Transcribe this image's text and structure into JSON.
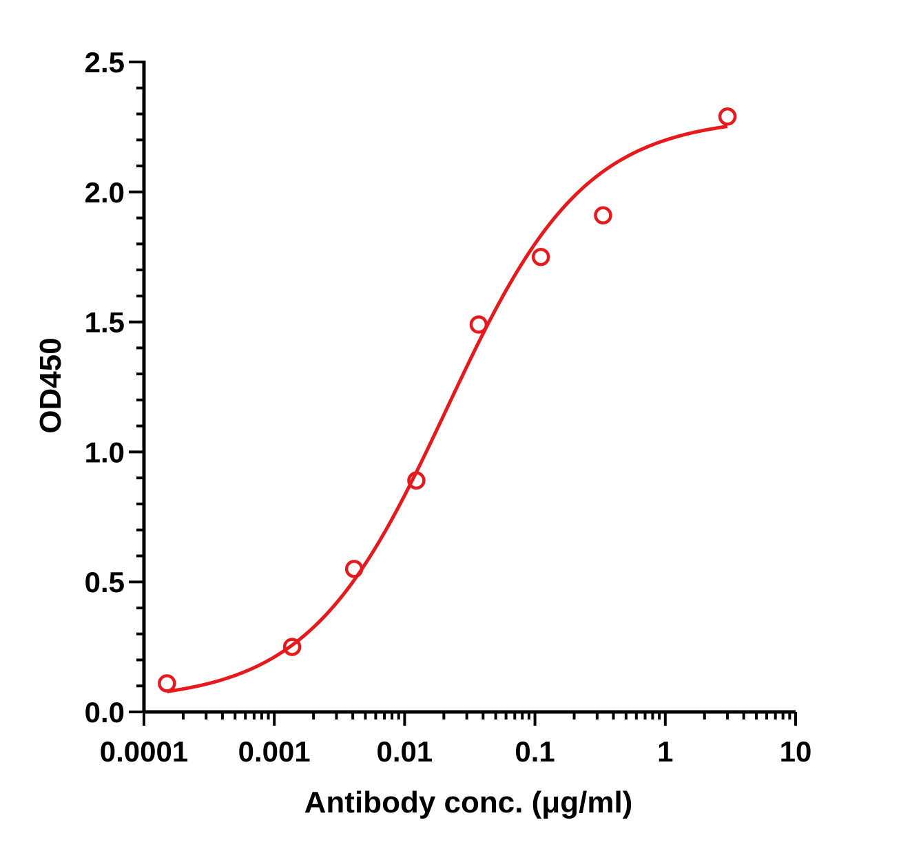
{
  "chart_data": {
    "type": "scatter",
    "title": "",
    "xlabel": "Antibody conc. (μg/ml)",
    "ylabel": "OD450",
    "xscale": "log",
    "xlim": [
      0.0001,
      10
    ],
    "ylim": [
      0,
      2.5
    ],
    "x_tick_labels": [
      "0.0001",
      "0.001",
      "0.01",
      "0.1",
      "1",
      "10"
    ],
    "y_tick_labels": [
      "0.0",
      "0.5",
      "1.0",
      "1.5",
      "2.0",
      "2.5"
    ],
    "grid": false,
    "legend": "none",
    "color": "#e8191c",
    "series": [
      {
        "marker": "open-circle",
        "x": [
          0.00015,
          0.00137,
          0.0041,
          0.0123,
          0.037,
          0.111,
          0.333,
          3
        ],
        "y": [
          0.11,
          0.25,
          0.55,
          0.89,
          1.49,
          1.75,
          1.91,
          2.29
        ]
      }
    ],
    "fit_curve": {
      "model": "4PL",
      "bottom": 0.04,
      "top": 2.29,
      "ec50": 0.021,
      "hill": 0.82,
      "x_range": [
        0.00015,
        3
      ]
    }
  }
}
